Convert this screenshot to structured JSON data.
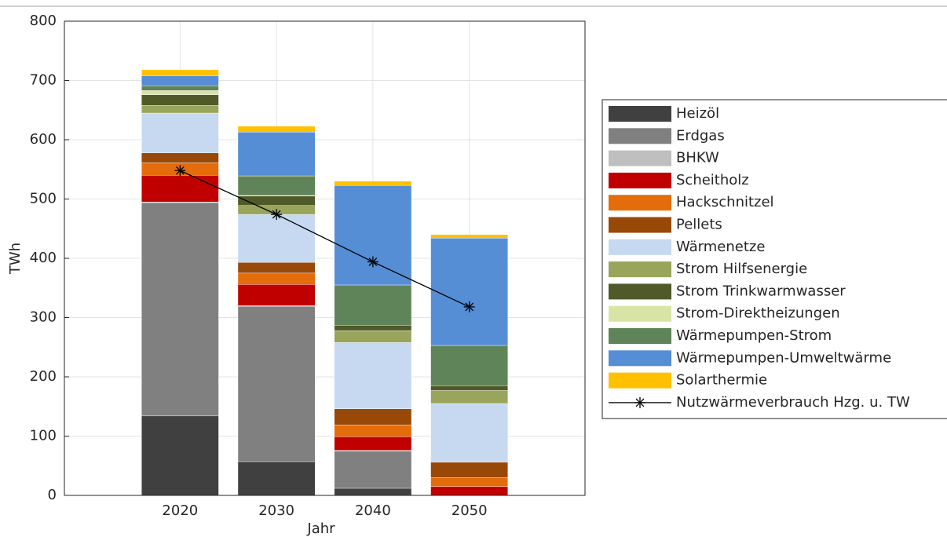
{
  "chart_data": {
    "type": "bar",
    "stacked": true,
    "x": [
      2020,
      2030,
      2040,
      2050
    ],
    "xlim": [
      2008,
      2062
    ],
    "xticks": [
      2020,
      2030,
      2040,
      2050
    ],
    "ylim": [
      0,
      800
    ],
    "yticks": [
      0,
      100,
      200,
      300,
      400,
      500,
      600,
      700,
      800
    ],
    "xlabel": "Jahr",
    "ylabel": "TWh",
    "grid": true,
    "legend": "right",
    "series": [
      {
        "name": "Heizöl",
        "color": "#404040",
        "values": [
          134,
          57,
          12,
          0
        ]
      },
      {
        "name": "Erdgas",
        "color": "#808080",
        "values": [
          360,
          262,
          63,
          0
        ]
      },
      {
        "name": "BHKW",
        "color": "#bfbfbf",
        "values": [
          1,
          1,
          1,
          0
        ]
      },
      {
        "name": "Scheitholz",
        "color": "#c00000",
        "values": [
          45,
          36,
          23,
          15
        ]
      },
      {
        "name": "Hackschnitzel",
        "color": "#e46c0a",
        "values": [
          21,
          19,
          20,
          15
        ]
      },
      {
        "name": "Pellets",
        "color": "#984807",
        "values": [
          17,
          18,
          27,
          26
        ]
      },
      {
        "name": "Wärmenetze",
        "color": "#c6d9f1",
        "values": [
          67,
          81,
          112,
          99
        ]
      },
      {
        "name": "Strom Hilfsenergie",
        "color": "#98a55a",
        "values": [
          13,
          15,
          20,
          22
        ]
      },
      {
        "name": "Strom Trinkwarmwasser",
        "color": "#4f5a28",
        "values": [
          18,
          16,
          9,
          8
        ]
      },
      {
        "name": "Strom-Direktheizungen",
        "color": "#d7e4a5",
        "values": [
          7,
          1,
          0,
          0
        ]
      },
      {
        "name": "Wärmepumpen-Strom",
        "color": "#60845a",
        "values": [
          8,
          33,
          68,
          68
        ]
      },
      {
        "name": "Wärmepumpen-Umweltwärme",
        "color": "#558ed5",
        "values": [
          17,
          74,
          168,
          181
        ]
      },
      {
        "name": "Solarthermie",
        "color": "#ffc000",
        "values": [
          10,
          10,
          7,
          6
        ]
      },
      {
        "name": "Nutzwärmeverbrauch Hzg. u. TW",
        "type": "line",
        "marker": "*",
        "color": "#000000",
        "values": [
          548,
          474,
          394,
          318
        ]
      }
    ]
  }
}
